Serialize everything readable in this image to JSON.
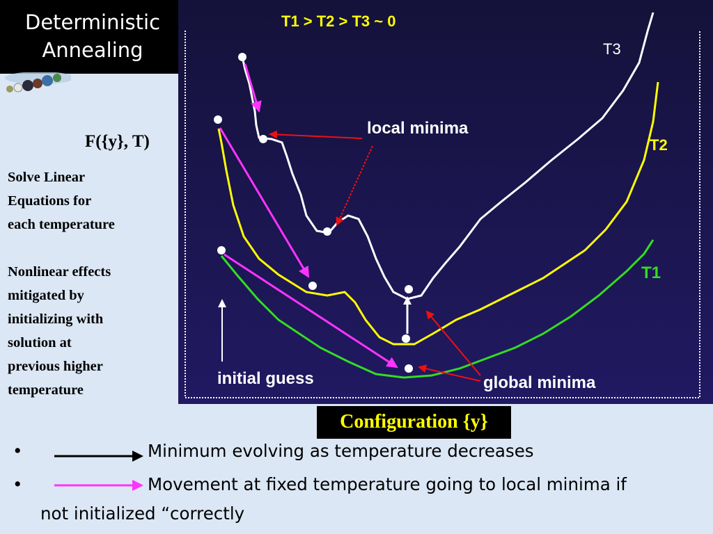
{
  "slide": {
    "title_line1": "Deterministic",
    "title_line2": "Annealing",
    "function_label": "F({y}, T)",
    "side_text_1": [
      "Solve Linear",
      "Equations for",
      "each temperature"
    ],
    "side_text_2": [
      "Nonlinear effects",
      "mitigated by",
      "initializing with",
      "solution at",
      "previous higher",
      "temperature"
    ]
  },
  "diagram": {
    "header": "T1 > T2 > T3 ~ 0",
    "curve_labels": {
      "t3": "T3",
      "t2": "T2",
      "t1": "T1"
    },
    "local_minima_label": "local minima",
    "global_minima_label": "global minima",
    "initial_guess_label": "initial guess",
    "x_axis_label": "Configuration {y}",
    "colors": {
      "t1": "#33dd22",
      "t2": "#ffff00",
      "t3": "#ffffff",
      "red_arrow": "#ee1111",
      "magenta_arrow": "#ff33ff",
      "background": "#1c1652"
    }
  },
  "legend": {
    "bullet_char": "•",
    "item1": "Minimum evolving as temperature decreases",
    "item2_line1": "Movement at fixed temperature going to local minima if",
    "item2_line2": "not initialized “correctly"
  }
}
